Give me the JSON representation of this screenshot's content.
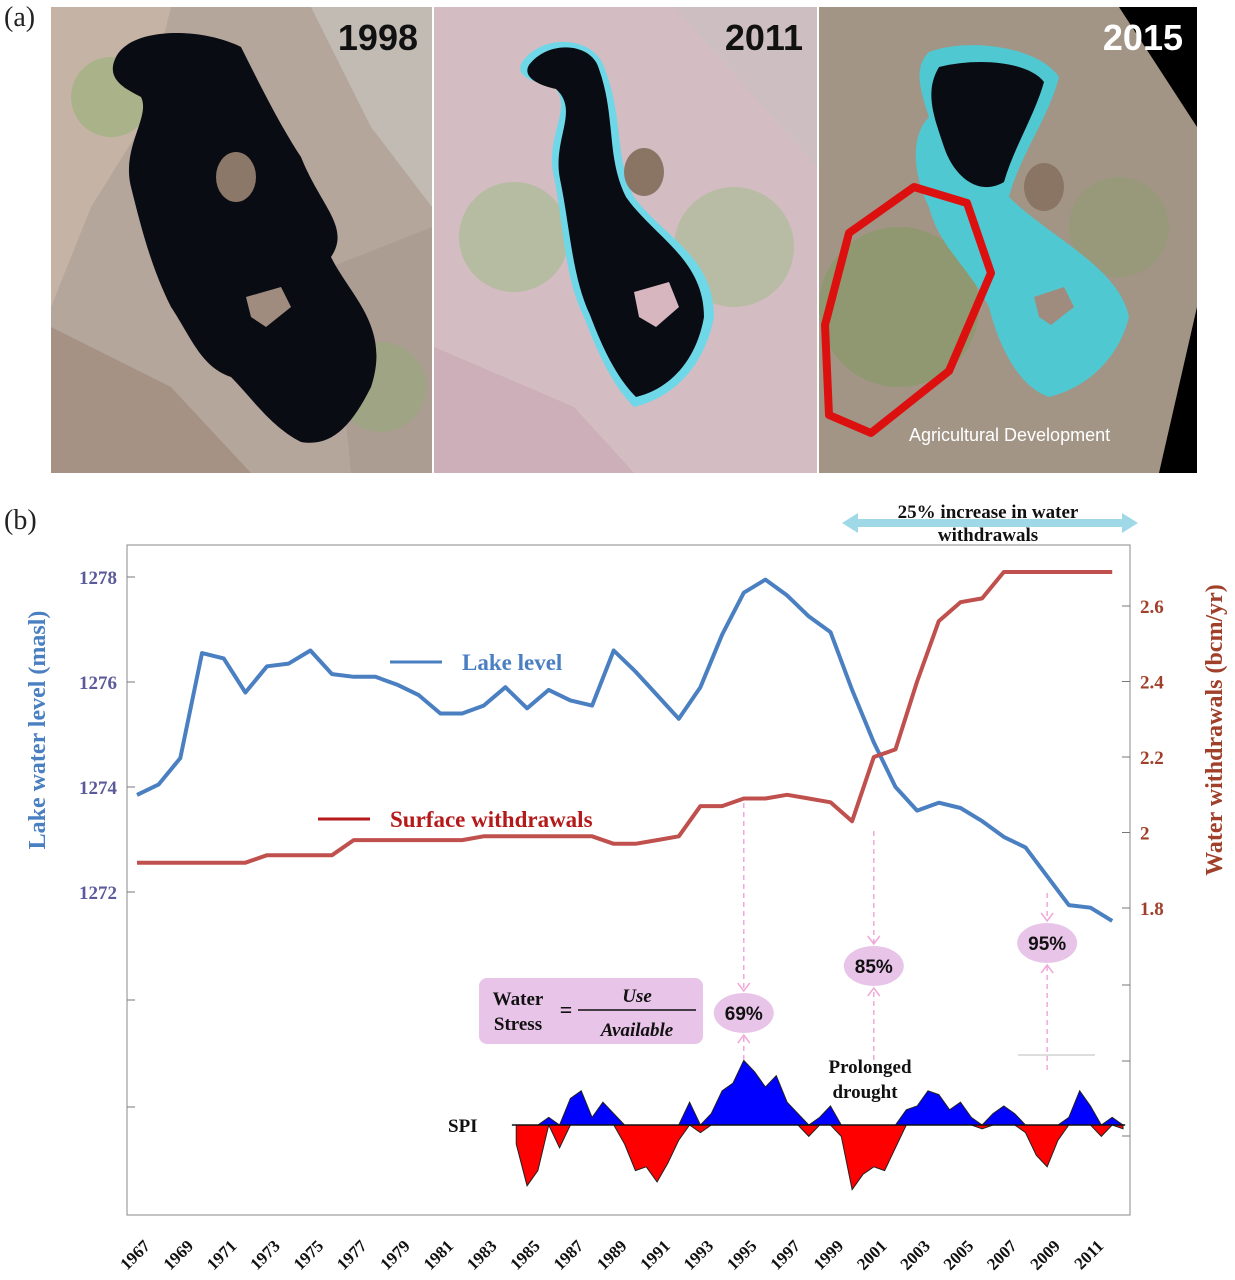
{
  "panel_a": {
    "label": "(a)",
    "images": [
      {
        "year": "1998",
        "year_color": "#111111"
      },
      {
        "year": "2011",
        "year_color": "#111111"
      },
      {
        "year": "2015",
        "year_color": "#ffffff"
      }
    ],
    "annotation": "Agricultural Development"
  },
  "panel_b": {
    "label": "(b)",
    "banner": {
      "line1": "25% increase in water",
      "line2": "withdrawals"
    },
    "formula": {
      "lhs_top": "Water",
      "lhs_bottom": "Stress",
      "eq": "=",
      "num": "Use",
      "den": "Available"
    },
    "stress_labels": [
      {
        "text": "69%",
        "year": 1995
      },
      {
        "text": "85%",
        "year": 2001
      },
      {
        "text": "95%",
        "year": 2009
      }
    ],
    "drought_label": {
      "line1": "Prolonged",
      "line2": "drought"
    },
    "spi_label": "SPI"
  },
  "colors": {
    "lake": "#4a7fc1",
    "withdrawals": "#c0504d",
    "left_axis": "#5b5b9b",
    "right_axis": "#a0402a",
    "spi_pos": "#0000ff",
    "spi_neg": "#ff0000",
    "bubble": "#e8c4e8",
    "arrow": "#f0a8d8",
    "banner": "#9fd8e6"
  },
  "chart_data": {
    "type": "line",
    "title": "",
    "ylabel": "Lake water level (masl)",
    "y2label": "Water withdrawals (bcm/yr)",
    "ylim": [
      1272,
      1278
    ],
    "yticks": [
      1272,
      1274,
      1276,
      1278
    ],
    "y2lim": [
      1.8,
      2.6
    ],
    "y2ticks": [
      1.8,
      2.0,
      2.2,
      2.4,
      2.6
    ],
    "y2ticklabels": [
      "1.8",
      "2",
      "2.2",
      "2.4",
      "2.6"
    ],
    "xticks": [
      "1967",
      "1969",
      "1971",
      "1973",
      "1975",
      "1977",
      "1979",
      "1981",
      "1983",
      "1985",
      "1987",
      "1989",
      "1991",
      "1993",
      "1995",
      "1997",
      "1999",
      "2001",
      "2003",
      "2005",
      "2007",
      "2009",
      "2011"
    ],
    "series": [
      {
        "name": "Lake level",
        "axis": "left",
        "x": [
          1967,
          1968,
          1969,
          1970,
          1971,
          1972,
          1973,
          1974,
          1975,
          1976,
          1977,
          1978,
          1979,
          1980,
          1981,
          1982,
          1983,
          1984,
          1985,
          1986,
          1987,
          1988,
          1989,
          1990,
          1991,
          1992,
          1993,
          1994,
          1995,
          1996,
          1997,
          1998,
          1999,
          2000,
          2001,
          2002,
          2003,
          2004,
          2005,
          2006,
          2007,
          2008,
          2009,
          2010,
          2011,
          2012
        ],
        "values": [
          1273.85,
          1274.05,
          1274.55,
          1276.55,
          1276.45,
          1275.8,
          1276.3,
          1276.35,
          1276.6,
          1276.15,
          1276.1,
          1276.1,
          1275.95,
          1275.75,
          1275.4,
          1275.4,
          1275.55,
          1275.9,
          1275.5,
          1275.85,
          1275.65,
          1275.55,
          1276.6,
          1276.2,
          1275.75,
          1275.3,
          1275.9,
          1276.9,
          1277.7,
          1277.95,
          1277.65,
          1277.25,
          1276.95,
          1275.85,
          1274.85,
          1274.0,
          1273.55,
          1273.7,
          1273.6,
          1273.35,
          1273.05,
          1272.85,
          1272.3,
          1271.75,
          1271.7,
          1271.45
        ]
      },
      {
        "name": "Surface withdrawals",
        "axis": "right",
        "x": [
          1967,
          1968,
          1969,
          1970,
          1971,
          1972,
          1973,
          1974,
          1975,
          1976,
          1977,
          1978,
          1979,
          1980,
          1981,
          1982,
          1983,
          1984,
          1985,
          1986,
          1987,
          1988,
          1989,
          1990,
          1991,
          1992,
          1993,
          1994,
          1995,
          1996,
          1997,
          1998,
          1999,
          2000,
          2001,
          2002,
          2003,
          2004,
          2005,
          2006,
          2007,
          2008,
          2009,
          2010,
          2011,
          2012
        ],
        "values": [
          1.92,
          1.92,
          1.92,
          1.92,
          1.92,
          1.92,
          1.94,
          1.94,
          1.94,
          1.94,
          1.98,
          1.98,
          1.98,
          1.98,
          1.98,
          1.98,
          1.99,
          1.99,
          1.99,
          1.99,
          1.99,
          1.99,
          1.97,
          1.97,
          1.98,
          1.99,
          2.07,
          2.07,
          2.09,
          2.09,
          2.1,
          2.09,
          2.08,
          2.03,
          2.2,
          2.22,
          2.4,
          2.56,
          2.61,
          2.62,
          2.69,
          2.69,
          2.69,
          2.69,
          2.69,
          2.69
        ]
      }
    ],
    "spi": {
      "name": "SPI",
      "x": [
        1984.5,
        1985,
        1985.5,
        1986,
        1986.5,
        1987,
        1987.5,
        1988,
        1988.5,
        1989,
        1989.5,
        1990,
        1990.5,
        1991,
        1991.5,
        1992,
        1992.5,
        1993,
        1993.5,
        1994,
        1994.5,
        1995,
        1995.5,
        1996,
        1996.5,
        1997,
        1997.5,
        1998,
        1998.5,
        1999,
        1999.5,
        2000,
        2000.5,
        2001,
        2001.5,
        2002,
        2002.5,
        2003,
        2003.5,
        2004,
        2004.5,
        2005,
        2005.5,
        2006,
        2006.5,
        2007,
        2007.5,
        2008,
        2008.5,
        2009,
        2009.5,
        2010,
        2010.5,
        2011,
        2011.5,
        2012,
        2012.5
      ],
      "values": [
        -0.5,
        -1.6,
        -1.2,
        0.2,
        -0.6,
        0.7,
        0.9,
        0.2,
        0.6,
        0.3,
        -0.5,
        -1.2,
        -1.1,
        -1.5,
        -1.0,
        -0.4,
        0.6,
        -0.2,
        0.3,
        0.9,
        1.1,
        1.7,
        1.4,
        1.0,
        1.3,
        0.6,
        0.3,
        -0.3,
        0.2,
        0.5,
        -0.3,
        -1.7,
        -1.3,
        -1.1,
        -1.2,
        -0.6,
        0.4,
        0.5,
        0.9,
        0.8,
        0.4,
        0.6,
        0.2,
        -0.1,
        0.3,
        0.5,
        0.3,
        -0.2,
        -0.8,
        -1.1,
        -0.4,
        0.2,
        0.9,
        0.5,
        -0.3,
        0.2,
        -0.1
      ]
    }
  }
}
